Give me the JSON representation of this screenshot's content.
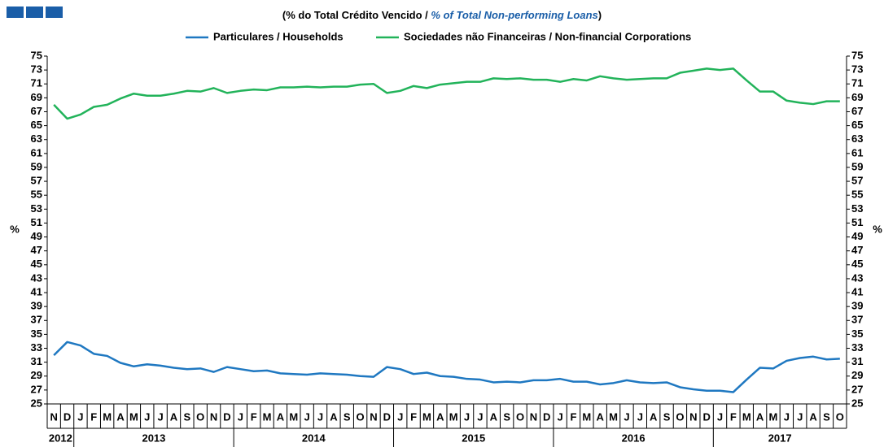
{
  "chart_data": {
    "type": "line",
    "title_parts": [
      "(% do Total Crédito Vencido / ",
      "% of Total Non-performing Loans",
      ")"
    ],
    "ylabel": "%",
    "y2label": "%",
    "categories": [
      "N",
      "D",
      "J",
      "F",
      "M",
      "A",
      "M",
      "J",
      "J",
      "A",
      "S",
      "O",
      "N",
      "D",
      "J",
      "F",
      "M",
      "A",
      "M",
      "J",
      "J",
      "A",
      "S",
      "O",
      "N",
      "D",
      "J",
      "F",
      "M",
      "A",
      "M",
      "J",
      "J",
      "A",
      "S",
      "O",
      "N",
      "D",
      "J",
      "F",
      "M",
      "A",
      "M",
      "J",
      "J",
      "A",
      "S",
      "O",
      "N",
      "D",
      "J",
      "F",
      "M",
      "A",
      "M",
      "J",
      "J",
      "A",
      "S",
      "O"
    ],
    "years": [
      "2012",
      "2013",
      "2014",
      "2015",
      "2016",
      "2017"
    ],
    "series": [
      {
        "name": "Particulares / Households",
        "color": "#1f78c1",
        "values": [
          32,
          33.9,
          33.4,
          32.2,
          31.9,
          30.9,
          30.4,
          30.7,
          30.5,
          30.2,
          30,
          30.1,
          29.6,
          30.3,
          30,
          29.7,
          29.8,
          29.4,
          29.3,
          29.2,
          29.4,
          29.3,
          29.2,
          29,
          28.9,
          30.3,
          30,
          29.3,
          29.5,
          29,
          28.9,
          28.6,
          28.5,
          28.1,
          28.2,
          28.1,
          28.4,
          28.4,
          28.6,
          28.2,
          28.2,
          27.8,
          28,
          28.4,
          28.1,
          28,
          28.1,
          27.4,
          27.1,
          26.9,
          26.9,
          26.7,
          28.5,
          30.2,
          30.1,
          31.2,
          31.6,
          31.8,
          31.4,
          31.5
        ]
      },
      {
        "name": "Sociedades não Financeiras / Non-financial Corporations",
        "color": "#22b35a",
        "values": [
          68,
          66,
          66.6,
          67.7,
          68,
          68.9,
          69.6,
          69.3,
          69.3,
          69.6,
          70,
          69.9,
          70.4,
          69.7,
          70,
          70.2,
          70.1,
          70.5,
          70.5,
          70.6,
          70.5,
          70.6,
          70.6,
          70.9,
          71,
          69.7,
          70,
          70.7,
          70.4,
          70.9,
          71.1,
          71.3,
          71.3,
          71.8,
          71.7,
          71.8,
          71.6,
          71.6,
          71.3,
          71.7,
          71.5,
          72.1,
          71.8,
          71.6,
          71.7,
          71.8,
          71.8,
          72.6,
          72.9,
          73.2,
          73,
          73.2,
          71.5,
          69.9,
          69.9,
          68.6,
          68.3,
          68.1,
          68.5,
          68.5
        ]
      }
    ],
    "ylim": [
      25,
      75
    ],
    "yticks": [
      25,
      27,
      29,
      31,
      33,
      35,
      37,
      39,
      41,
      43,
      45,
      47,
      49,
      51,
      53,
      55,
      57,
      59,
      61,
      63,
      65,
      67,
      69,
      71,
      73,
      75
    ],
    "y2lim": [
      25,
      75
    ],
    "y2ticks": [
      25,
      27,
      29,
      31,
      33,
      35,
      37,
      39,
      41,
      43,
      45,
      47,
      49,
      51,
      53,
      55,
      57,
      59,
      61,
      63,
      65,
      67,
      69,
      71,
      73,
      75
    ]
  }
}
